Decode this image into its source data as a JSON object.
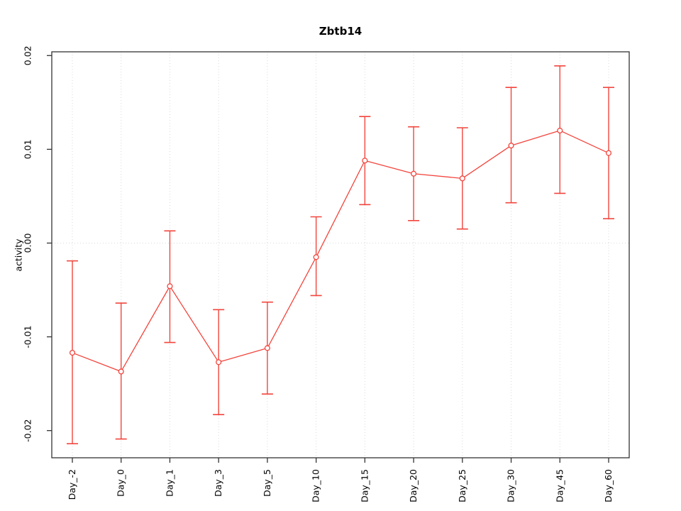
{
  "figure": {
    "background_color": "#ffffff"
  },
  "chart_data": {
    "type": "line",
    "title": "Zbtb14",
    "xlabel": "",
    "ylabel": "activity",
    "categories": [
      "Day_-2",
      "Day_0",
      "Day_1",
      "Day_3",
      "Day_5",
      "Day_10",
      "Day_15",
      "Day_20",
      "Day_25",
      "Day_30",
      "Day_45",
      "Day_60"
    ],
    "series": [
      {
        "name": "Zbtb14 activity",
        "marker": "open-circle",
        "color": "#f2453d",
        "values": [
          -0.0117,
          -0.0137,
          -0.0046,
          -0.0127,
          -0.0112,
          -0.0015,
          0.0088,
          0.0074,
          0.0069,
          0.0104,
          0.012,
          0.0096
        ],
        "error_low": [
          -0.0214,
          -0.0209,
          -0.0106,
          -0.0183,
          -0.0161,
          -0.0056,
          0.0041,
          0.0024,
          0.0015,
          0.0043,
          0.0053,
          0.0026
        ],
        "error_high": [
          -0.0019,
          -0.0064,
          0.0013,
          -0.0071,
          -0.0063,
          0.0028,
          0.0135,
          0.0124,
          0.0123,
          0.0166,
          0.0189,
          0.0166
        ]
      }
    ],
    "ylim": [
      -0.0229,
      0.0204
    ],
    "yticks": [
      -0.02,
      -0.01,
      0,
      0.01,
      0.02
    ],
    "ytick_labels": [
      "-0.02",
      "-0.01",
      "0.00",
      "0.01",
      "0.02"
    ],
    "grid": {
      "vertical": "dotted line at each category",
      "horizontal": "dotted line at zero only",
      "color": "#d9d9d9"
    },
    "axis_color": "#333333",
    "text_color": "#000000",
    "legend": null
  }
}
